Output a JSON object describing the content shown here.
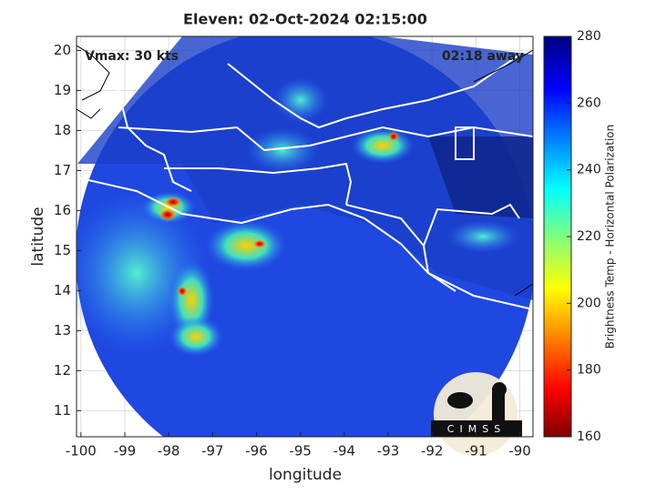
{
  "chart_data": {
    "type": "map",
    "title": "Eleven: 02-Oct-2024 02:15:00",
    "annotations": [
      "Vmax: 30 kts",
      "02:18 away"
    ],
    "x_label": "longitude",
    "y_label": "latitude",
    "xlim": [
      -100.1,
      -89.7
    ],
    "xticks": [
      -100,
      -99,
      -98,
      -97,
      -96,
      -95,
      -94,
      -93,
      -92,
      -91,
      -90
    ],
    "ylim": [
      10.35,
      20.35
    ],
    "yticks": [
      11,
      12,
      13,
      14,
      15,
      16,
      17,
      18,
      19,
      20
    ],
    "grid": true,
    "colorbar": {
      "label": "Brightness Temp - Horizontal Polarization",
      "lim": [
        160,
        280
      ],
      "ticks": [
        160,
        180,
        200,
        220,
        240,
        260,
        280
      ]
    },
    "logo": "CIMSS"
  }
}
